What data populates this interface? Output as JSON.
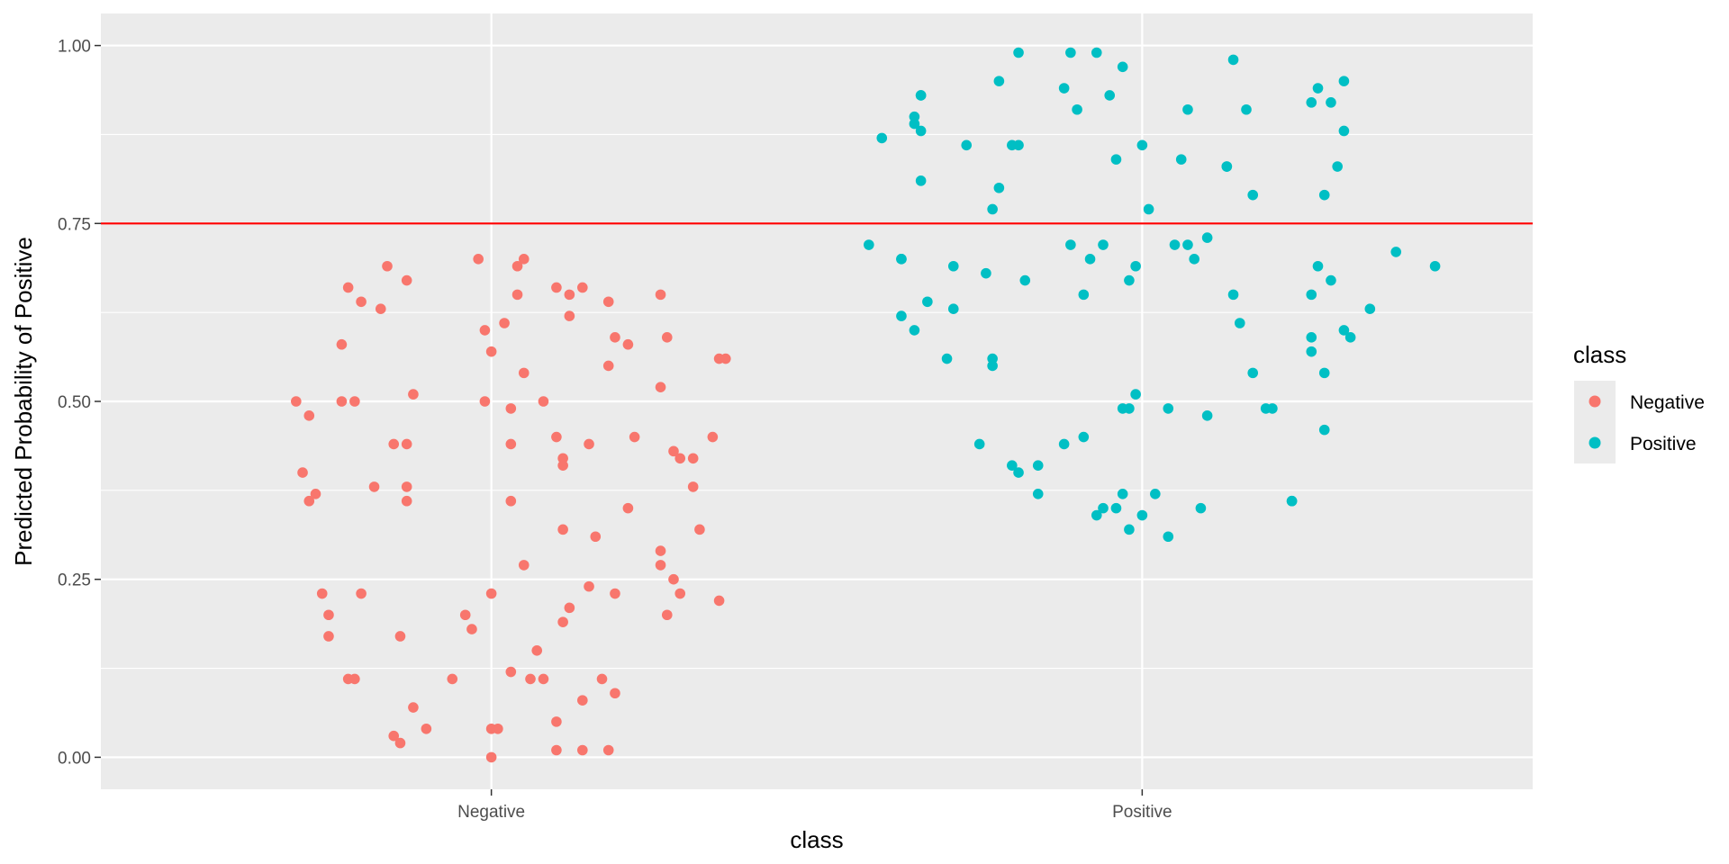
{
  "chart_data": {
    "type": "scatter",
    "jitter": true,
    "title": "",
    "xlabel": "class",
    "ylabel": "Predicted Probability of Positive",
    "categories": [
      "Negative",
      "Positive"
    ],
    "ylim": [
      -0.045,
      1.045
    ],
    "yticks": [
      "0.00",
      "0.25",
      "0.50",
      "0.75",
      "1.00"
    ],
    "ytick_values": [
      0,
      0.25,
      0.5,
      0.75,
      1.0
    ],
    "grid": true,
    "panel_background": "#ebebeb",
    "threshold": {
      "y": 0.75,
      "color": "#ff0000"
    },
    "legend": {
      "title": "class",
      "position": "right"
    },
    "series": [
      {
        "name": "Negative",
        "color": "#f8766d",
        "points": [
          [
            0.7,
            0.5
          ],
          [
            0.71,
            0.4
          ],
          [
            0.72,
            0.36
          ],
          [
            0.72,
            0.48
          ],
          [
            0.73,
            0.37
          ],
          [
            0.74,
            0.23
          ],
          [
            0.75,
            0.2
          ],
          [
            0.75,
            0.17
          ],
          [
            0.77,
            0.58
          ],
          [
            0.77,
            0.5
          ],
          [
            0.78,
            0.11
          ],
          [
            0.78,
            0.66
          ],
          [
            0.79,
            0.5
          ],
          [
            0.79,
            0.11
          ],
          [
            0.8,
            0.23
          ],
          [
            0.8,
            0.64
          ],
          [
            0.82,
            0.38
          ],
          [
            0.83,
            0.63
          ],
          [
            0.84,
            0.69
          ],
          [
            0.85,
            0.44
          ],
          [
            0.85,
            0.03
          ],
          [
            0.86,
            0.02
          ],
          [
            0.86,
            0.17
          ],
          [
            0.87,
            0.67
          ],
          [
            0.87,
            0.44
          ],
          [
            0.87,
            0.38
          ],
          [
            0.87,
            0.36
          ],
          [
            0.88,
            0.07
          ],
          [
            0.88,
            0.51
          ],
          [
            0.9,
            0.04
          ],
          [
            0.94,
            0.11
          ],
          [
            0.96,
            0.2
          ],
          [
            0.97,
            0.18
          ],
          [
            0.98,
            0.7
          ],
          [
            0.99,
            0.5
          ],
          [
            0.99,
            0.6
          ],
          [
            1.0,
            0.04
          ],
          [
            1.0,
            0.0
          ],
          [
            1.0,
            0.57
          ],
          [
            1.0,
            0.23
          ],
          [
            1.01,
            0.04
          ],
          [
            1.02,
            0.61
          ],
          [
            1.03,
            0.36
          ],
          [
            1.03,
            0.12
          ],
          [
            1.03,
            0.44
          ],
          [
            1.03,
            0.49
          ],
          [
            1.04,
            0.69
          ],
          [
            1.04,
            0.65
          ],
          [
            1.05,
            0.27
          ],
          [
            1.05,
            0.7
          ],
          [
            1.05,
            0.54
          ],
          [
            1.06,
            0.11
          ],
          [
            1.07,
            0.15
          ],
          [
            1.08,
            0.5
          ],
          [
            1.08,
            0.11
          ],
          [
            1.1,
            0.66
          ],
          [
            1.1,
            0.45
          ],
          [
            1.1,
            0.01
          ],
          [
            1.1,
            0.05
          ],
          [
            1.11,
            0.42
          ],
          [
            1.11,
            0.41
          ],
          [
            1.11,
            0.32
          ],
          [
            1.11,
            0.19
          ],
          [
            1.12,
            0.65
          ],
          [
            1.12,
            0.21
          ],
          [
            1.12,
            0.62
          ],
          [
            1.14,
            0.08
          ],
          [
            1.14,
            0.01
          ],
          [
            1.14,
            0.66
          ],
          [
            1.15,
            0.44
          ],
          [
            1.15,
            0.24
          ],
          [
            1.16,
            0.31
          ],
          [
            1.17,
            0.11
          ],
          [
            1.18,
            0.64
          ],
          [
            1.18,
            0.01
          ],
          [
            1.18,
            0.55
          ],
          [
            1.19,
            0.09
          ],
          [
            1.19,
            0.59
          ],
          [
            1.19,
            0.23
          ],
          [
            1.21,
            0.35
          ],
          [
            1.21,
            0.58
          ],
          [
            1.22,
            0.45
          ],
          [
            1.26,
            0.52
          ],
          [
            1.26,
            0.65
          ],
          [
            1.26,
            0.29
          ],
          [
            1.26,
            0.27
          ],
          [
            1.27,
            0.59
          ],
          [
            1.27,
            0.2
          ],
          [
            1.28,
            0.43
          ],
          [
            1.28,
            0.25
          ],
          [
            1.29,
            0.42
          ],
          [
            1.29,
            0.23
          ],
          [
            1.31,
            0.42
          ],
          [
            1.31,
            0.38
          ],
          [
            1.32,
            0.32
          ],
          [
            1.34,
            0.45
          ],
          [
            1.35,
            0.22
          ],
          [
            1.35,
            0.56
          ],
          [
            1.36,
            0.56
          ]
        ]
      },
      {
        "name": "Positive",
        "color": "#00bfc4",
        "points": [
          [
            1.58,
            0.72
          ],
          [
            1.6,
            0.87
          ],
          [
            1.63,
            0.62
          ],
          [
            1.63,
            0.7
          ],
          [
            1.63,
            0.7
          ],
          [
            1.65,
            0.9
          ],
          [
            1.65,
            0.89
          ],
          [
            1.65,
            0.6
          ],
          [
            1.66,
            0.88
          ],
          [
            1.66,
            0.93
          ],
          [
            1.66,
            0.81
          ],
          [
            1.66,
            0.93
          ],
          [
            1.67,
            0.64
          ],
          [
            1.7,
            0.56
          ],
          [
            1.71,
            0.69
          ],
          [
            1.71,
            0.63
          ],
          [
            1.73,
            0.86
          ],
          [
            1.75,
            0.44
          ],
          [
            1.76,
            0.68
          ],
          [
            1.77,
            0.55
          ],
          [
            1.77,
            0.56
          ],
          [
            1.77,
            0.77
          ],
          [
            1.78,
            0.95
          ],
          [
            1.78,
            0.8
          ],
          [
            1.8,
            0.86
          ],
          [
            1.8,
            0.41
          ],
          [
            1.81,
            0.99
          ],
          [
            1.81,
            0.86
          ],
          [
            1.81,
            0.4
          ],
          [
            1.82,
            0.67
          ],
          [
            1.84,
            0.37
          ],
          [
            1.84,
            0.41
          ],
          [
            1.88,
            0.94
          ],
          [
            1.88,
            0.44
          ],
          [
            1.89,
            0.99
          ],
          [
            1.89,
            0.72
          ],
          [
            1.9,
            0.91
          ],
          [
            1.91,
            0.65
          ],
          [
            1.91,
            0.45
          ],
          [
            1.92,
            0.7
          ],
          [
            1.93,
            0.34
          ],
          [
            1.93,
            0.99
          ],
          [
            1.94,
            0.72
          ],
          [
            1.94,
            0.35
          ],
          [
            1.95,
            0.93
          ],
          [
            1.96,
            0.35
          ],
          [
            1.96,
            0.84
          ],
          [
            1.97,
            0.37
          ],
          [
            1.97,
            0.97
          ],
          [
            1.97,
            0.49
          ],
          [
            1.98,
            0.32
          ],
          [
            1.98,
            0.67
          ],
          [
            1.98,
            0.49
          ],
          [
            1.99,
            0.69
          ],
          [
            1.99,
            0.51
          ],
          [
            2.0,
            0.34
          ],
          [
            2.0,
            0.86
          ],
          [
            2.01,
            0.77
          ],
          [
            2.02,
            0.37
          ],
          [
            2.04,
            0.49
          ],
          [
            2.04,
            0.31
          ],
          [
            2.05,
            0.72
          ],
          [
            2.06,
            0.84
          ],
          [
            2.07,
            0.91
          ],
          [
            2.07,
            0.72
          ],
          [
            2.08,
            0.7
          ],
          [
            2.09,
            0.35
          ],
          [
            2.1,
            0.48
          ],
          [
            2.1,
            0.73
          ],
          [
            2.13,
            0.83
          ],
          [
            2.13,
            0.83
          ],
          [
            2.14,
            0.65
          ],
          [
            2.14,
            0.98
          ],
          [
            2.15,
            0.61
          ],
          [
            2.16,
            0.91
          ],
          [
            2.17,
            0.54
          ],
          [
            2.17,
            0.79
          ],
          [
            2.19,
            0.49
          ],
          [
            2.2,
            0.49
          ],
          [
            2.23,
            0.36
          ],
          [
            2.23,
            0.36
          ],
          [
            2.26,
            0.92
          ],
          [
            2.26,
            0.65
          ],
          [
            2.26,
            0.59
          ],
          [
            2.26,
            0.57
          ],
          [
            2.27,
            0.69
          ],
          [
            2.27,
            0.94
          ],
          [
            2.28,
            0.79
          ],
          [
            2.28,
            0.54
          ],
          [
            2.28,
            0.46
          ],
          [
            2.29,
            0.67
          ],
          [
            2.29,
            0.92
          ],
          [
            2.3,
            0.83
          ],
          [
            2.31,
            0.95
          ],
          [
            2.31,
            0.88
          ],
          [
            2.31,
            0.6
          ],
          [
            2.32,
            0.59
          ],
          [
            2.35,
            0.63
          ],
          [
            2.39,
            0.71
          ],
          [
            2.45,
            0.69
          ]
        ]
      }
    ]
  }
}
